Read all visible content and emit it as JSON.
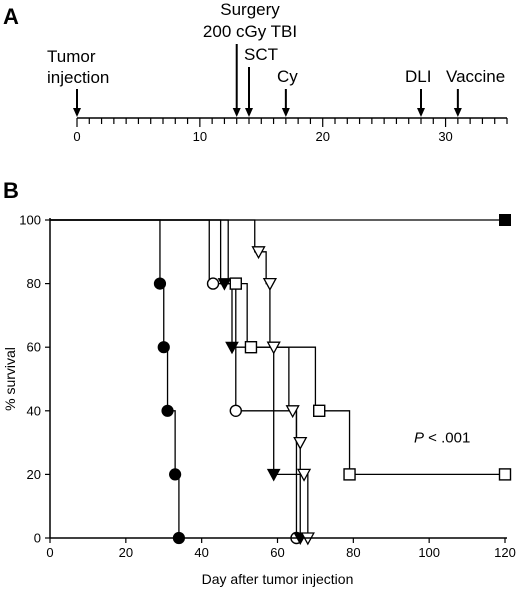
{
  "panel_a": {
    "label": "A",
    "events": [
      {
        "day": 0,
        "lines": [
          "Tumor",
          "injection"
        ]
      },
      {
        "day": 13,
        "lines": [
          "Surgery",
          "200 cGy TBI"
        ]
      },
      {
        "day": 14,
        "lines": [
          "SCT"
        ]
      },
      {
        "day": 17,
        "lines": [
          "Cy"
        ]
      },
      {
        "day": 28,
        "lines": [
          "DLI"
        ]
      },
      {
        "day": 31,
        "lines": [
          "Vaccine"
        ]
      }
    ],
    "timeline": {
      "min": 0,
      "max": 35,
      "labeled_ticks": [
        "0",
        "10",
        "20",
        "30"
      ]
    }
  },
  "panel_b": {
    "label": "B",
    "annotation": {
      "italic": "P",
      "rest": " < .001"
    }
  },
  "chart_data": {
    "type": "line",
    "subtype": "kaplan-meier survival",
    "xlabel": "Day after tumor injection",
    "ylabel": "% survival",
    "xlim": [
      0,
      120
    ],
    "ylim": [
      0,
      100
    ],
    "xticks": [
      0,
      20,
      40,
      60,
      80,
      100,
      120
    ],
    "yticks": [
      0,
      20,
      40,
      60,
      80,
      100
    ],
    "series": [
      {
        "marker": "filled-square",
        "steps": [
          [
            0,
            100
          ],
          [
            120,
            100
          ]
        ],
        "markers": [
          [
            120,
            100
          ]
        ]
      },
      {
        "marker": "filled-circle",
        "steps": [
          [
            0,
            100
          ],
          [
            29,
            100
          ],
          [
            29,
            80
          ],
          [
            30,
            80
          ],
          [
            30,
            60
          ],
          [
            31,
            60
          ],
          [
            31,
            40
          ],
          [
            33,
            40
          ],
          [
            33,
            20
          ],
          [
            34,
            20
          ],
          [
            34,
            0
          ]
        ],
        "markers": [
          [
            29,
            80
          ],
          [
            30,
            60
          ],
          [
            31,
            40
          ],
          [
            33,
            20
          ],
          [
            34,
            0
          ]
        ]
      },
      {
        "marker": "open-circle",
        "steps": [
          [
            0,
            100
          ],
          [
            42,
            100
          ],
          [
            42,
            80
          ],
          [
            49,
            80
          ],
          [
            49,
            40
          ],
          [
            65,
            40
          ],
          [
            65,
            0
          ]
        ],
        "markers": [
          [
            43,
            80
          ],
          [
            49,
            40
          ],
          [
            65,
            0
          ]
        ]
      },
      {
        "marker": "filled-triangle-down",
        "steps": [
          [
            0,
            100
          ],
          [
            45,
            100
          ],
          [
            45,
            80
          ],
          [
            48,
            80
          ],
          [
            48,
            60
          ],
          [
            59,
            60
          ],
          [
            59,
            20
          ],
          [
            66,
            20
          ],
          [
            66,
            0
          ]
        ],
        "markers": [
          [
            46,
            80
          ],
          [
            48,
            60
          ],
          [
            59,
            20
          ],
          [
            66,
            0
          ]
        ]
      },
      {
        "marker": "open-square",
        "steps": [
          [
            0,
            100
          ],
          [
            47,
            100
          ],
          [
            47,
            80
          ],
          [
            52,
            80
          ],
          [
            52,
            60
          ],
          [
            70,
            60
          ],
          [
            70,
            40
          ],
          [
            79,
            40
          ],
          [
            79,
            20
          ],
          [
            120,
            20
          ]
        ],
        "markers": [
          [
            49,
            80
          ],
          [
            53,
            60
          ],
          [
            71,
            40
          ],
          [
            79,
            20
          ],
          [
            120,
            20
          ]
        ]
      },
      {
        "marker": "open-triangle-down",
        "steps": [
          [
            0,
            100
          ],
          [
            54,
            100
          ],
          [
            54,
            90
          ],
          [
            57,
            90
          ],
          [
            57,
            80
          ],
          [
            58,
            80
          ],
          [
            58,
            60
          ],
          [
            63,
            60
          ],
          [
            63,
            40
          ],
          [
            65,
            40
          ],
          [
            65,
            30
          ],
          [
            66,
            30
          ],
          [
            66,
            20
          ],
          [
            68,
            20
          ],
          [
            68,
            0
          ]
        ],
        "markers": [
          [
            55,
            90
          ],
          [
            58,
            80
          ],
          [
            59,
            60
          ],
          [
            64,
            40
          ],
          [
            66,
            30
          ],
          [
            67,
            20
          ],
          [
            68,
            0
          ]
        ]
      }
    ]
  }
}
